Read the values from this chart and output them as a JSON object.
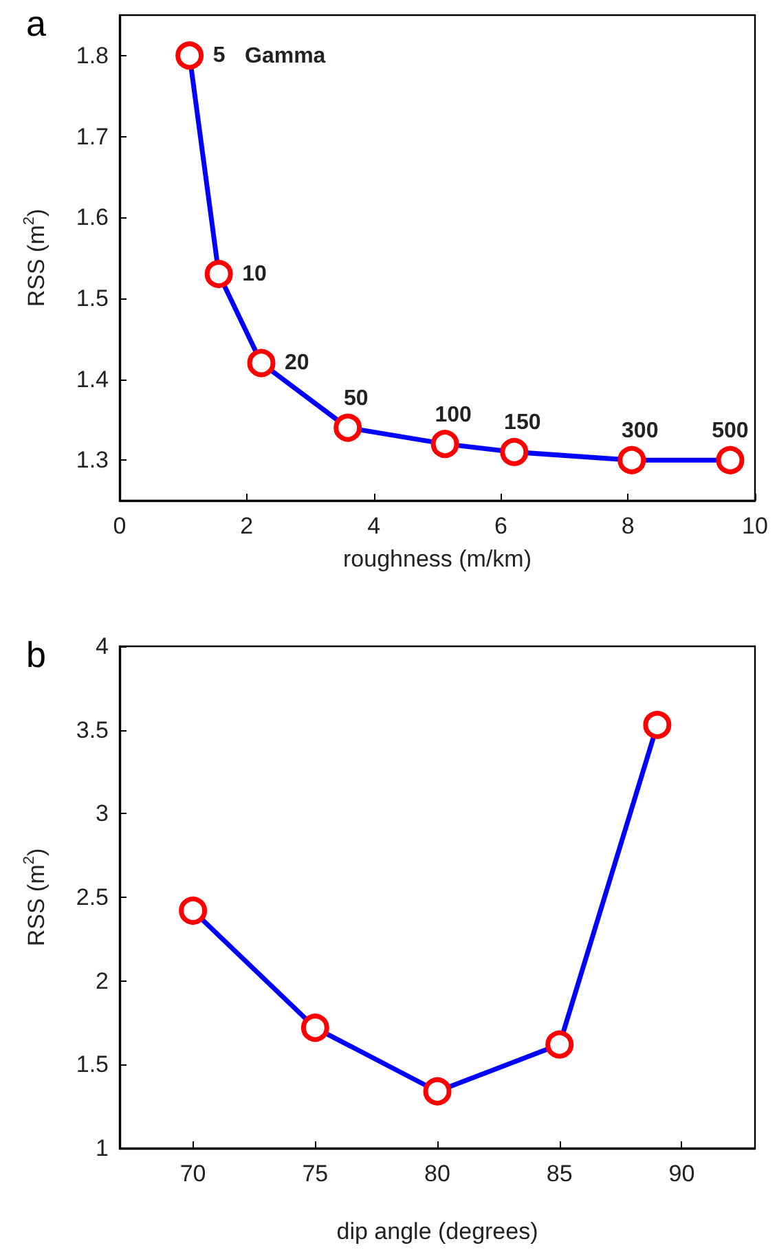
{
  "chart_data": [
    {
      "type": "line",
      "title": "a",
      "xlabel": "roughness (m/km)",
      "ylabel": "RSS (m$^{2}$)",
      "x": [
        1.1,
        1.56,
        2.23,
        3.59,
        5.12,
        6.21,
        8.06,
        9.61
      ],
      "series": [
        {
          "color": "#0000ff",
          "colors": [
            "#ff0000",
            "#ff0000",
            "#ff0000",
            "#ff0000",
            "#ff0000",
            "#ff0000",
            "#ff0000",
            "#ff0000"
          ],
          "values": [
            1.8,
            1.53,
            1.42,
            1.34,
            1.32,
            1.31,
            1.3,
            1.3
          ]
        }
      ],
      "xlim": [
        0,
        10
      ],
      "xticks": [
        0,
        2,
        4,
        6,
        8,
        10
      ],
      "ylim": [
        1.25,
        1.85
      ],
      "yticks": [
        1.3,
        1.4,
        1.5,
        1.6,
        1.7,
        1.8
      ],
      "marker": "circle",
      "line_style": "solid",
      "grid": false,
      "annotations": [
        {
          "text": "5",
          "x": 1.1,
          "y": 1.8
        },
        "Gamma",
        {
          "text": "10",
          "x": 1.56,
          "y": 1.53
        },
        {
          "text": "20",
          "x": 2.23,
          "y": 1.42
        },
        {
          "text": "50",
          "x": 3.59,
          "y": 1.34
        },
        {
          "text": "100",
          "x": 5.12,
          "y": 1.32
        },
        {
          "text": "150",
          "x": 6.21,
          "y": 1.31
        },
        {
          "text": "300",
          "x": 8.06,
          "y": 1.3
        },
        {
          "text": "500",
          "x": 9.61,
          "y": 1.3
        }
      ]
    },
    {
      "type": "line",
      "title": "b",
      "xlabel": "dip angle (degrees)",
      "ylabel": "RSS (m$^{2}$)",
      "x": [
        70,
        75,
        80,
        85,
        89
      ],
      "series": [
        {
          "color": "#0000ff",
          "colors": [
            "#ff0000",
            "#ff0000",
            "#ff0000",
            "#ff0000",
            "#ff0000"
          ],
          "values": [
            2.42,
            1.72,
            1.34,
            1.62,
            3.53
          ]
        }
      ],
      "xlim": [
        67,
        93
      ],
      "xticks": [
        70,
        75,
        80,
        85,
        90
      ],
      "ylim": [
        1,
        4
      ],
      "yticks": [
        1,
        1.5,
        2,
        2.5,
        3,
        3.5,
        4
      ],
      "marker": "circle",
      "line_style": "solid",
      "grid": false
    }
  ]
}
